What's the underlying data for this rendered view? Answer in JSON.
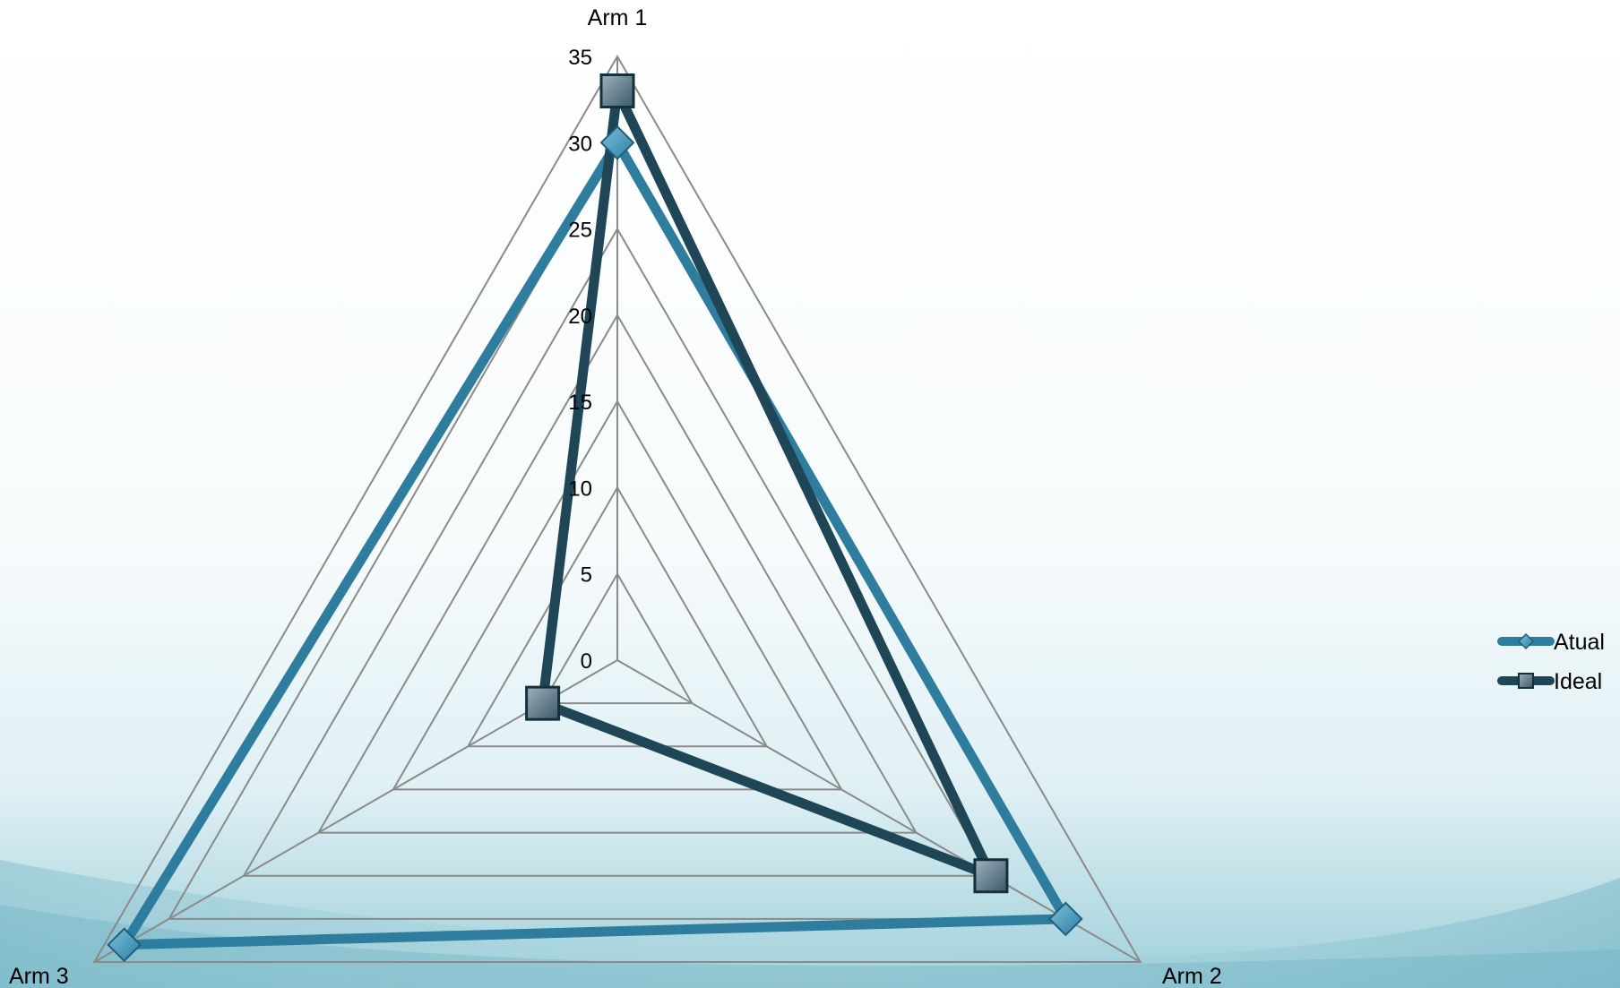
{
  "chart_data": {
    "type": "radar",
    "axes": [
      "Arm 1",
      "Arm 2",
      "Arm 3"
    ],
    "rlim": [
      0,
      35
    ],
    "ticks": [
      "0",
      "5",
      "10",
      "15",
      "20",
      "25",
      "30",
      "35"
    ],
    "tick_values": [
      0,
      5,
      10,
      15,
      20,
      25,
      30,
      35
    ],
    "grid": true,
    "legend_position": "right",
    "series": [
      {
        "name": "Atual",
        "values": [
          30,
          30,
          33
        ],
        "color": "#2E7D9E",
        "marker": "diamond"
      },
      {
        "name": "Ideal",
        "values": [
          33,
          25,
          5
        ],
        "color": "#1F4656",
        "marker": "square"
      }
    ]
  },
  "colors": {
    "grid": "#8a8a8a",
    "background_top": "#ffffff",
    "background_bottom": "#8fc7d3"
  }
}
